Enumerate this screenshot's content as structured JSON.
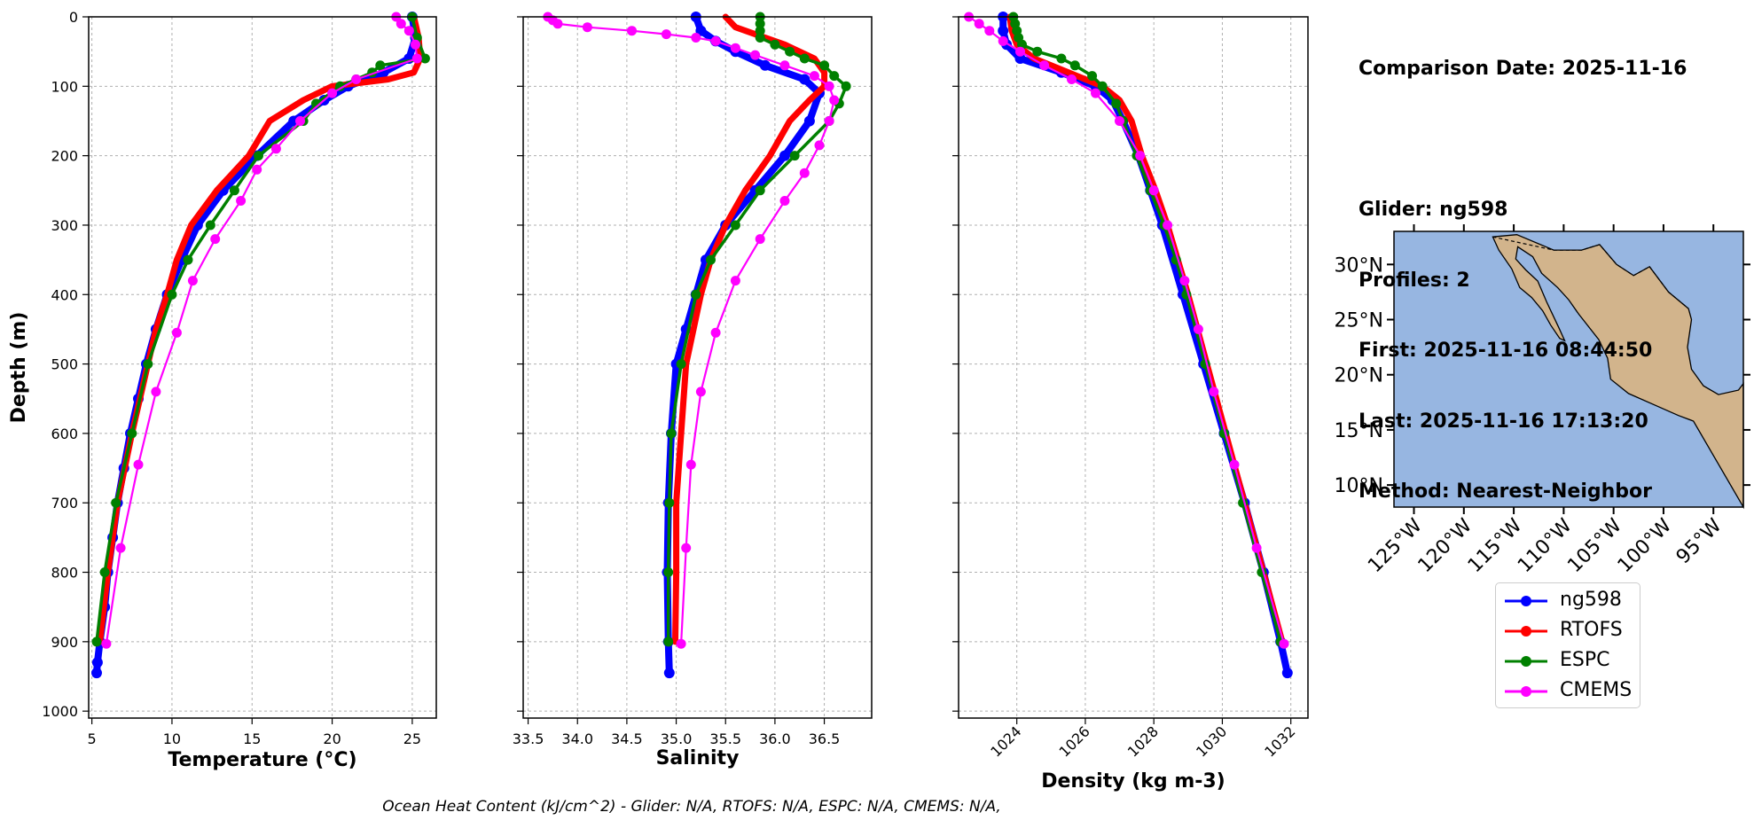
{
  "colors": {
    "ng598": "#0000ff",
    "RTOFS": "#ff0000",
    "ESPC": "#008000",
    "CMEMS": "#ff00ff",
    "land": "#d2b48c",
    "ocean": "#97b6e1",
    "grid": "#b0b0b0"
  },
  "chart_data": [
    {
      "type": "line",
      "xlabel": "Temperature (°C)",
      "ylabel": "Depth (m)",
      "xlim": [
        4.8,
        26.5
      ],
      "ylim": [
        1010,
        0
      ],
      "xticks": [
        5,
        10,
        15,
        20,
        25
      ],
      "yticks": [
        0,
        100,
        200,
        300,
        400,
        500,
        600,
        700,
        800,
        900,
        1000
      ],
      "grid": true,
      "series": [
        {
          "name": "ng598",
          "depth": [
            0,
            30,
            60,
            80,
            100,
            120,
            150,
            200,
            250,
            300,
            350,
            400,
            450,
            500,
            550,
            600,
            650,
            700,
            750,
            800,
            850,
            900,
            930,
            945
          ],
          "values": [
            25.0,
            25.2,
            24.8,
            23.2,
            21.0,
            19.5,
            17.6,
            15.3,
            13.2,
            11.6,
            10.6,
            9.7,
            9.0,
            8.4,
            7.9,
            7.4,
            7.0,
            6.6,
            6.3,
            6.0,
            5.8,
            5.5,
            5.35,
            5.3
          ]
        },
        {
          "name": "RTOFS",
          "depth": [
            0,
            30,
            60,
            80,
            90,
            100,
            120,
            150,
            200,
            250,
            300,
            350,
            400,
            450,
            500,
            600,
            700,
            800,
            900
          ],
          "values": [
            25.1,
            25.4,
            25.5,
            25.1,
            23.5,
            20.0,
            18.2,
            16.1,
            14.8,
            12.8,
            11.2,
            10.3,
            9.7,
            9.0,
            8.5,
            7.5,
            6.6,
            6.0,
            5.5
          ]
        },
        {
          "name": "ESPC",
          "depth": [
            0,
            30,
            60,
            70,
            80,
            90,
            100,
            125,
            150,
            200,
            250,
            300,
            350,
            400,
            500,
            600,
            700,
            800,
            900
          ],
          "values": [
            25.0,
            25.3,
            25.8,
            23.0,
            22.5,
            21.5,
            20.5,
            19.0,
            18.2,
            15.4,
            13.9,
            12.4,
            11.0,
            10.0,
            8.5,
            7.5,
            6.5,
            5.8,
            5.3
          ]
        },
        {
          "name": "CMEMS",
          "depth": [
            0,
            10,
            20,
            40,
            60,
            90,
            110,
            150,
            190,
            220,
            265,
            320,
            380,
            455,
            540,
            645,
            765,
            903
          ],
          "values": [
            24.0,
            24.3,
            24.8,
            25.2,
            25.3,
            21.5,
            20.0,
            18.0,
            16.5,
            15.3,
            14.3,
            12.7,
            11.3,
            10.3,
            9.0,
            7.9,
            6.8,
            5.9
          ]
        }
      ]
    },
    {
      "type": "line",
      "xlabel": "Salinity",
      "xlim": [
        33.45,
        36.98
      ],
      "ylim": [
        1010,
        0
      ],
      "xticks": [
        33.5,
        34.0,
        34.5,
        35.0,
        35.5,
        36.0,
        36.5
      ],
      "xticklabels": [
        "33.5",
        "34.0",
        "34.5",
        "35.0",
        "35.5",
        "36.0",
        "36.5"
      ],
      "grid": true,
      "series": [
        {
          "name": "ng598",
          "depth": [
            0,
            20,
            35,
            50,
            70,
            90,
            110,
            150,
            200,
            250,
            300,
            350,
            400,
            450,
            500,
            600,
            700,
            800,
            900,
            945
          ],
          "values": [
            35.2,
            35.25,
            35.4,
            35.6,
            35.9,
            36.3,
            36.45,
            36.35,
            36.1,
            35.8,
            35.5,
            35.3,
            35.2,
            35.1,
            35.0,
            34.95,
            34.92,
            34.91,
            34.92,
            34.93
          ]
        },
        {
          "name": "RTOFS",
          "depth": [
            0,
            15,
            25,
            40,
            60,
            80,
            100,
            120,
            150,
            200,
            250,
            300,
            350,
            400,
            500,
            600,
            700,
            800,
            900
          ],
          "values": [
            35.5,
            35.6,
            35.8,
            36.1,
            36.4,
            36.5,
            36.5,
            36.35,
            36.15,
            35.95,
            35.7,
            35.5,
            35.35,
            35.25,
            35.1,
            35.05,
            35.0,
            35.0,
            34.99
          ]
        },
        {
          "name": "ESPC",
          "depth": [
            0,
            10,
            20,
            30,
            40,
            50,
            60,
            70,
            85,
            100,
            125,
            150,
            200,
            250,
            300,
            350,
            400,
            500,
            600,
            700,
            800,
            900
          ],
          "values": [
            35.85,
            35.85,
            35.85,
            35.85,
            36.0,
            36.15,
            36.3,
            36.5,
            36.6,
            36.72,
            36.65,
            36.55,
            36.2,
            35.85,
            35.6,
            35.35,
            35.2,
            35.05,
            34.95,
            34.93,
            34.92,
            34.92
          ]
        },
        {
          "name": "CMEMS",
          "depth": [
            0,
            5,
            10,
            15,
            20,
            25,
            30,
            35,
            45,
            55,
            70,
            85,
            100,
            120,
            150,
            185,
            225,
            265,
            320,
            380,
            455,
            540,
            645,
            765,
            903
          ],
          "values": [
            33.7,
            33.75,
            33.8,
            34.1,
            34.55,
            34.9,
            35.2,
            35.4,
            35.6,
            35.8,
            36.1,
            36.4,
            36.55,
            36.6,
            36.55,
            36.45,
            36.3,
            36.1,
            35.85,
            35.6,
            35.4,
            35.25,
            35.15,
            35.1,
            35.05
          ]
        }
      ]
    },
    {
      "type": "line",
      "xlabel": "Density (kg m-3)",
      "xlim": [
        1022.3,
        1032.5
      ],
      "ylim": [
        1010,
        0
      ],
      "xticks": [
        1024,
        1026,
        1028,
        1030,
        1032
      ],
      "xticklabels": [
        "1024",
        "1026",
        "1028",
        "1030",
        "1032"
      ],
      "grid": true,
      "series": [
        {
          "name": "ng598",
          "depth": [
            0,
            20,
            40,
            60,
            80,
            100,
            120,
            150,
            200,
            250,
            300,
            400,
            500,
            600,
            700,
            800,
            900,
            945
          ],
          "values": [
            1023.6,
            1023.6,
            1023.7,
            1024.1,
            1025.3,
            1026.3,
            1026.8,
            1027.1,
            1027.55,
            1027.9,
            1028.25,
            1028.85,
            1029.45,
            1030.05,
            1030.65,
            1031.2,
            1031.7,
            1031.9
          ]
        },
        {
          "name": "RTOFS",
          "depth": [
            0,
            20,
            40,
            60,
            70,
            90,
            100,
            120,
            150,
            200,
            250,
            300,
            350,
            400,
            500,
            600,
            700,
            800,
            900
          ],
          "values": [
            1023.8,
            1023.85,
            1024.0,
            1024.5,
            1025.0,
            1026.0,
            1026.5,
            1027.0,
            1027.35,
            1027.65,
            1028.05,
            1028.4,
            1028.7,
            1029.0,
            1029.55,
            1030.1,
            1030.65,
            1031.2,
            1031.75
          ]
        },
        {
          "name": "ESPC",
          "depth": [
            0,
            10,
            20,
            30,
            40,
            50,
            60,
            70,
            85,
            100,
            125,
            150,
            200,
            250,
            300,
            350,
            400,
            500,
            600,
            700,
            800,
            900
          ],
          "values": [
            1023.9,
            1023.95,
            1024.0,
            1024.05,
            1024.15,
            1024.6,
            1025.3,
            1025.7,
            1026.2,
            1026.5,
            1026.9,
            1027.1,
            1027.5,
            1027.9,
            1028.3,
            1028.65,
            1028.95,
            1029.5,
            1030.05,
            1030.6,
            1031.15,
            1031.7
          ]
        },
        {
          "name": "CMEMS",
          "depth": [
            0,
            10,
            20,
            35,
            50,
            70,
            90,
            110,
            150,
            200,
            250,
            300,
            380,
            450,
            540,
            645,
            765,
            903
          ],
          "values": [
            1022.6,
            1022.9,
            1023.2,
            1023.6,
            1024.1,
            1024.8,
            1025.6,
            1026.3,
            1027.0,
            1027.6,
            1028.0,
            1028.4,
            1028.9,
            1029.3,
            1029.75,
            1030.35,
            1031.0,
            1031.8
          ]
        }
      ]
    }
  ],
  "info": {
    "comparison_date": "Comparison Date: 2025-11-16",
    "glider": "Glider: ng598",
    "profiles": "Profiles: 2",
    "first": "First: 2025-11-16 08:44:50",
    "last": "Last: 2025-11-16 17:13:20",
    "method": "Method: Nearest-Neighbor"
  },
  "map": {
    "lon_range": [
      -127,
      -92
    ],
    "lat_range": [
      8,
      33
    ],
    "lat_labels": [
      "30°N",
      "25°N",
      "20°N",
      "15°N",
      "10°N"
    ],
    "lat_values": [
      30,
      25,
      20,
      15,
      10
    ],
    "lon_labels": [
      "125°W",
      "120°W",
      "115°W",
      "110°W",
      "105°W",
      "100°W",
      "95°W"
    ],
    "lon_values": [
      -125,
      -120,
      -115,
      -110,
      -105,
      -100,
      -95
    ]
  },
  "legend": {
    "items": [
      "ng598",
      "RTOFS",
      "ESPC",
      "CMEMS"
    ]
  },
  "footer": "Ocean Heat Content (kJ/cm^2) - Glider: N/A,  RTOFS: N/A,  ESPC: N/A,  CMEMS: N/A,"
}
